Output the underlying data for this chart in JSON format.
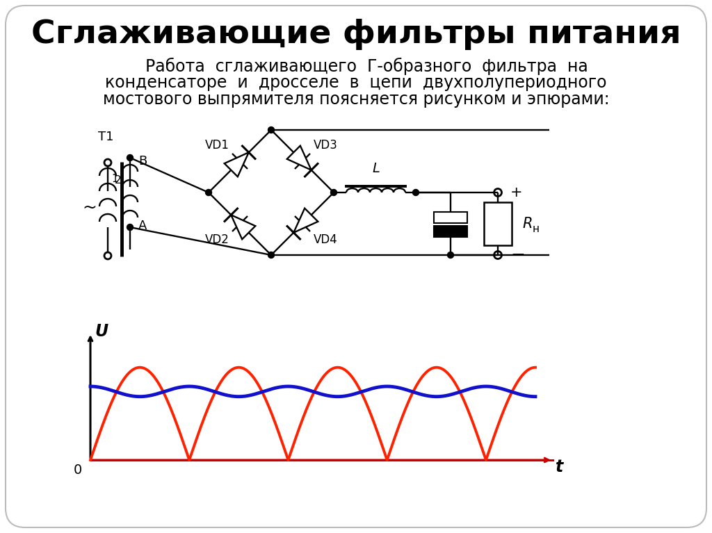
{
  "title": "Сглаживающие фильтры питания",
  "sub1": "    Работа  сглаживающего  Г-образного  фильтра  на",
  "sub2": "конденсаторе  и  дросселе  в  цепи  двухполупериодного",
  "sub3": "мостового выпрямителя поясняется рисунком и эпюрами:",
  "background_color": "#ffffff",
  "text_color": "#000000",
  "red_color": "#ff2200",
  "blue_color": "#1111cc",
  "title_fontsize": 34,
  "sub_fontsize": 17
}
